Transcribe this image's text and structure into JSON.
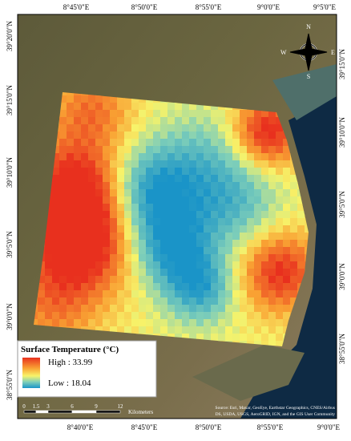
{
  "map": {
    "top_labels": [
      "8°45'0\"E",
      "8°50'0\"E",
      "8°55'0\"E",
      "9°0'0\"E",
      "9°5'0\"E"
    ],
    "bottom_labels": [
      "8°40'0\"E",
      "8°45'0\"E",
      "8°50'0\"E",
      "8°55'0\"E",
      "9°0'0\"E"
    ],
    "left_labels": [
      "39°20'0\"N",
      "39°15'0\"N",
      "39°10'0\"N",
      "39°5'0\"N",
      "39°0'0\"N",
      "38°55'0\"N"
    ],
    "right_labels": [
      "39°15'0\"N",
      "39°10'0\"N",
      "39°5'0\"N",
      "39°0'0\"N",
      "38°55'0\"N"
    ],
    "legend": {
      "title": "Surface Temperature (°C)",
      "high": "High : 33.99",
      "low": "Low : 18.04"
    },
    "scale": {
      "ticks": [
        0,
        1.5,
        3,
        6,
        9,
        12
      ],
      "unit": "Kilometers"
    },
    "north": {
      "n": "N",
      "e": "E",
      "s": "S",
      "w": "W"
    },
    "source": [
      "Source: Esri, Maxar, GeoEye, Earthstar Geographics, CNES/Airbus",
      "DS, USDA, USGS, AeroGRID, IGN, and the GIS User Community"
    ]
  }
}
